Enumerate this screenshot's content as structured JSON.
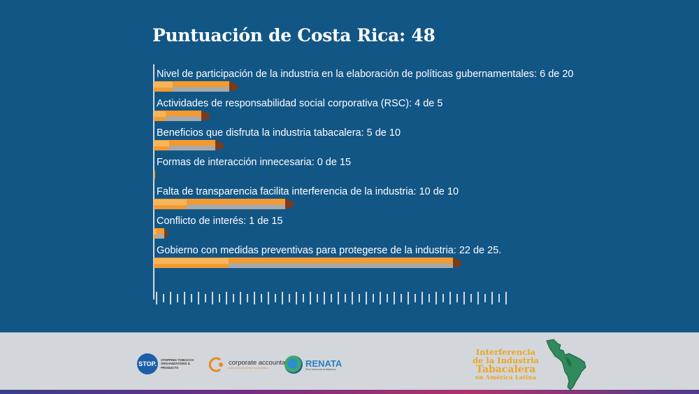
{
  "title": "Puntuación de Costa Rica: 48",
  "chart_data": {
    "type": "bar",
    "orientation": "horizontal",
    "title": "Puntuación de Costa Rica: 48",
    "categories": [
      "Nivel de participación de la industria en la elaboración de políticas gubernamentales: 6 de 20",
      "Actividades de responsabilidad social corporativa (RSC): 4 de 5",
      "Beneficios que disfruta la industria tabacalera: 5 de 10",
      "Formas de interacción innecesaria: 0 de 15",
      "Falta de transparencia facilita interferencia de la industria: 10 de 10",
      "Conflicto de interés: 1 de 15",
      "Gobierno con medidas preventivas para protegerse de la industria: 22 de 25."
    ],
    "values": [
      6,
      4,
      5,
      0,
      10,
      1,
      22
    ],
    "max_values": [
      20,
      5,
      10,
      15,
      10,
      15,
      25
    ],
    "xlim": [
      0,
      25
    ],
    "xlabel": "",
    "ylabel": "",
    "grid": false,
    "legend": "none",
    "colors": {
      "bar": "#f39a30",
      "bar_highlight": "#f7b55a",
      "bar_shadow": "#a9a9a9",
      "pencil_tip": "#7a3b1c"
    }
  },
  "colors": {
    "background_top": "#125686",
    "background_bottom": "#d3d6db",
    "title": "#ffffff",
    "itla": "#e8a71e"
  },
  "footer": {
    "stop_logo": "STOP.",
    "stop_tagline": "STOPPING TOBACCO ORGANIZATIONS & PRODUCTS",
    "corporate_accountability": "corporate accountability",
    "corporate_tagline": "Una vida sin control corporativo",
    "renata": "RENATA",
    "renata_tagline": "Red Nacional Antitabaco",
    "itla_line1": "Interferencia",
    "itla_line2": "de la Industria",
    "itla_line3": "Tabacalera",
    "itla_line4": "en América Latina"
  }
}
